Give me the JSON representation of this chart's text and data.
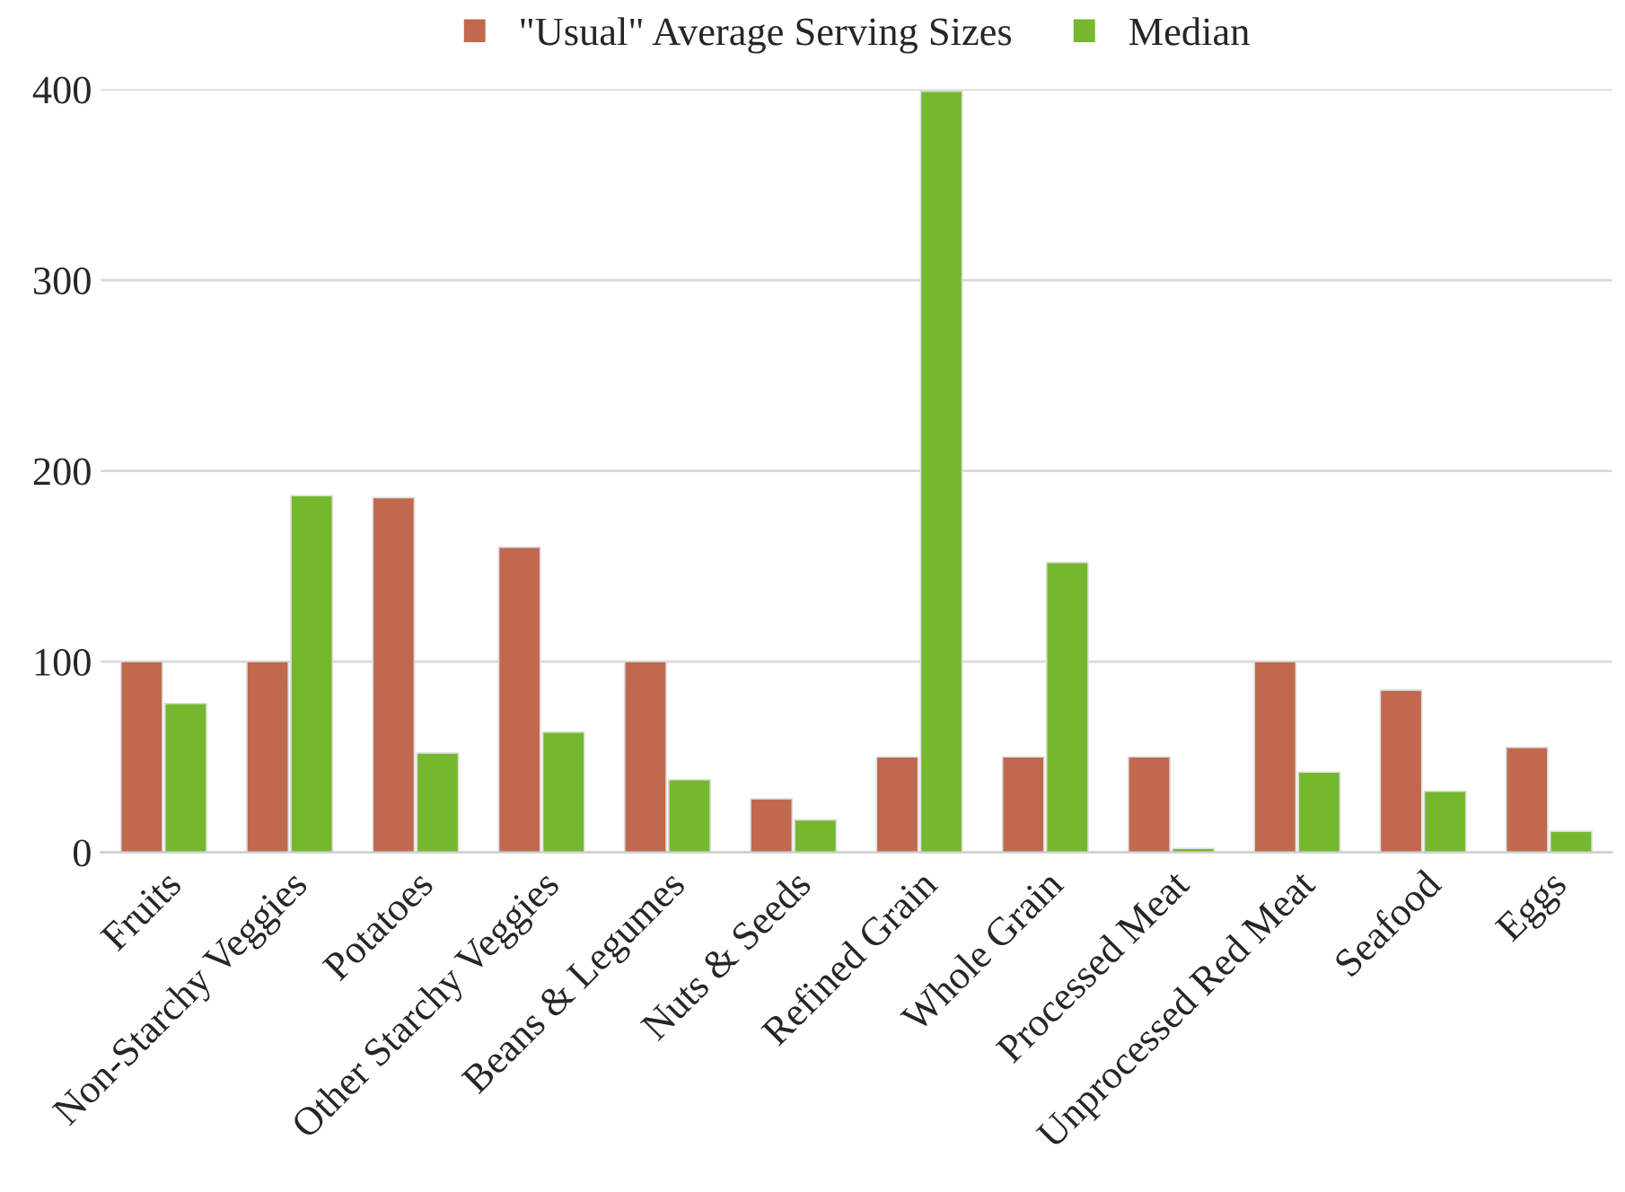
{
  "chart_data": {
    "type": "bar",
    "categories": [
      "Fruits",
      "Non-Starchy Veggies",
      "Potatoes",
      "Other Starchy Veggies",
      "Beans & Legumes",
      "Nuts & Seeds",
      "Refined Grain",
      "Whole Grain",
      "Processed Meat",
      "Unprocessed Red Meat",
      "Seafood",
      "Eggs"
    ],
    "series": [
      {
        "name": "\"Usual\" Average Serving Sizes",
        "color": "#c0694f",
        "values": [
          100,
          100,
          186,
          160,
          100,
          28,
          50,
          50,
          50,
          100,
          85,
          55
        ]
      },
      {
        "name": "Median",
        "color": "#74b82e",
        "values": [
          78,
          187,
          52,
          63,
          38,
          17,
          399,
          152,
          2,
          42,
          32,
          11
        ]
      }
    ],
    "ylim": [
      0,
      400
    ],
    "yticks": [
      0,
      100,
      200,
      300,
      400
    ],
    "grid": "y",
    "legend": "top"
  }
}
